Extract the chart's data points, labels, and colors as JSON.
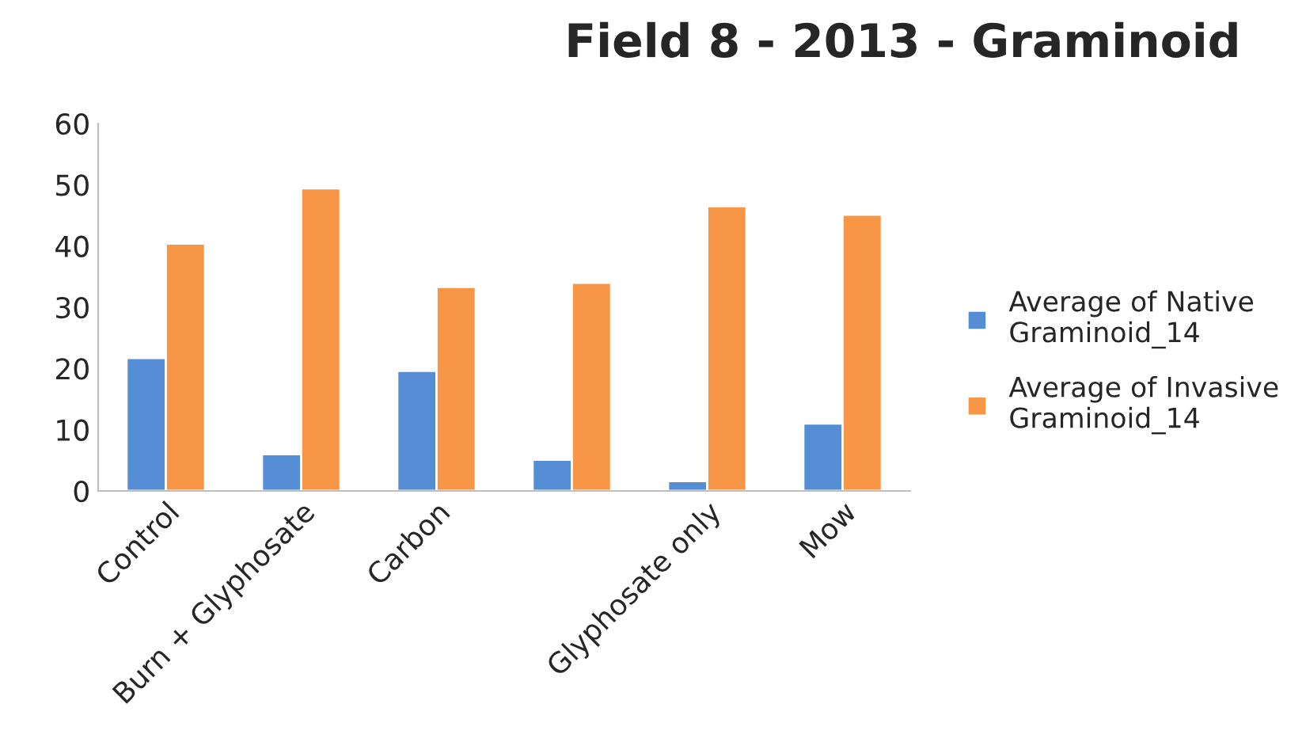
{
  "chart_data": {
    "type": "bar",
    "title": "Field 8 - 2013 - Graminoid",
    "categories": [
      "Control",
      "Burn + Glyphosate",
      "Carbon",
      null,
      "Glyphosate only",
      "Mow"
    ],
    "series": [
      {
        "name": "Average of Native Graminoid_14",
        "color": "#558ed5",
        "values": [
          21.7,
          6.0,
          19.6,
          5.1,
          1.6,
          11.0
        ]
      },
      {
        "name": "Average of Invasive Graminoid_14",
        "color": "#f79646",
        "values": [
          40.4,
          49.4,
          33.3,
          34.0,
          46.5,
          45.1
        ]
      }
    ],
    "ylim": [
      0,
      60
    ],
    "yticks": [
      0,
      10,
      20,
      30,
      40,
      50,
      60
    ],
    "grid": false,
    "legend": "right"
  }
}
